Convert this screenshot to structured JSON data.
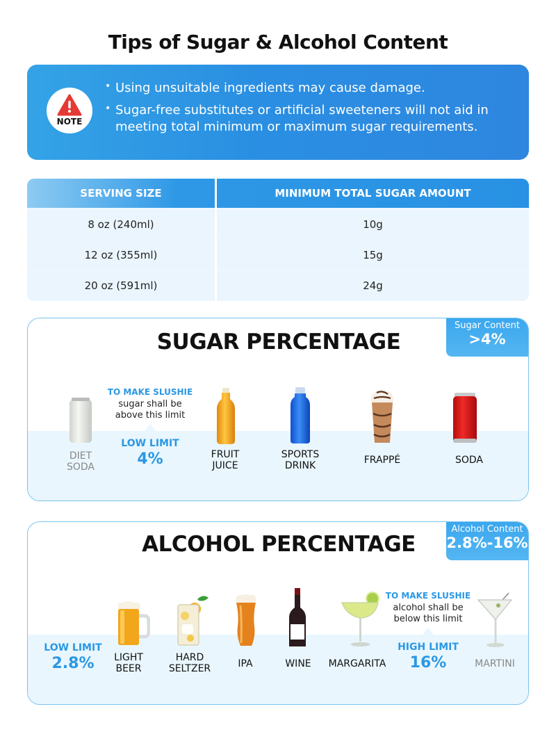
{
  "page_title": "Tips of Sugar & Alcohol Content",
  "note": {
    "badge": "NOTE",
    "icon": "warning-triangle-icon",
    "tips": [
      "Using unsuitable ingredients may cause damage.",
      "Sugar-free substitutes or artificial sweeteners will not aid in meeting total minimum or maximum sugar requirements."
    ]
  },
  "serving_table": {
    "headers": [
      "SERVING SIZE",
      "MINIMUM TOTAL SUGAR AMOUNT"
    ],
    "rows": [
      [
        "8 oz (240ml)",
        "10g"
      ],
      [
        "12 oz (355ml)",
        "15g"
      ],
      [
        "20 oz (591ml)",
        "24g"
      ]
    ]
  },
  "sugar": {
    "title": "SUGAR PERCENTAGE",
    "corner_label": "Sugar Content",
    "corner_value": ">4%",
    "info_head": "TO MAKE SLUSHIE",
    "info_body_1": "sugar shall be",
    "info_body_2": "above this limit",
    "limit_label": "LOW LIMIT",
    "limit_value": "4%",
    "items": [
      {
        "l1": "DIET",
        "l2": "SODA"
      },
      {
        "l1": "FRUIT",
        "l2": "JUICE"
      },
      {
        "l1": "SPORTS",
        "l2": "DRINK"
      },
      {
        "l1": "FRAPPÉ",
        "l2": ""
      },
      {
        "l1": "SODA",
        "l2": ""
      }
    ]
  },
  "alcohol": {
    "title": "ALCOHOL PERCENTAGE",
    "corner_label": "Alcohol Content",
    "corner_value": "2.8%-16%",
    "low_label": "LOW LIMIT",
    "low_value": "2.8%",
    "info_head": "TO MAKE SLUSHIE",
    "info_body_1": "alcohol shall be",
    "info_body_2": "below this limit",
    "high_label": "HIGH LIMIT",
    "high_value": "16%",
    "items": [
      {
        "l1": "LIGHT",
        "l2": "BEER"
      },
      {
        "l1": "HARD",
        "l2": "SELTZER"
      },
      {
        "l1": "IPA",
        "l2": ""
      },
      {
        "l1": "WINE",
        "l2": ""
      },
      {
        "l1": "MARGARITA",
        "l2": ""
      },
      {
        "l1": "MARTINI",
        "l2": ""
      }
    ]
  },
  "colors": {
    "accent": "#2b98e4",
    "band": "#e9f6fd",
    "warning": "#e53935"
  }
}
